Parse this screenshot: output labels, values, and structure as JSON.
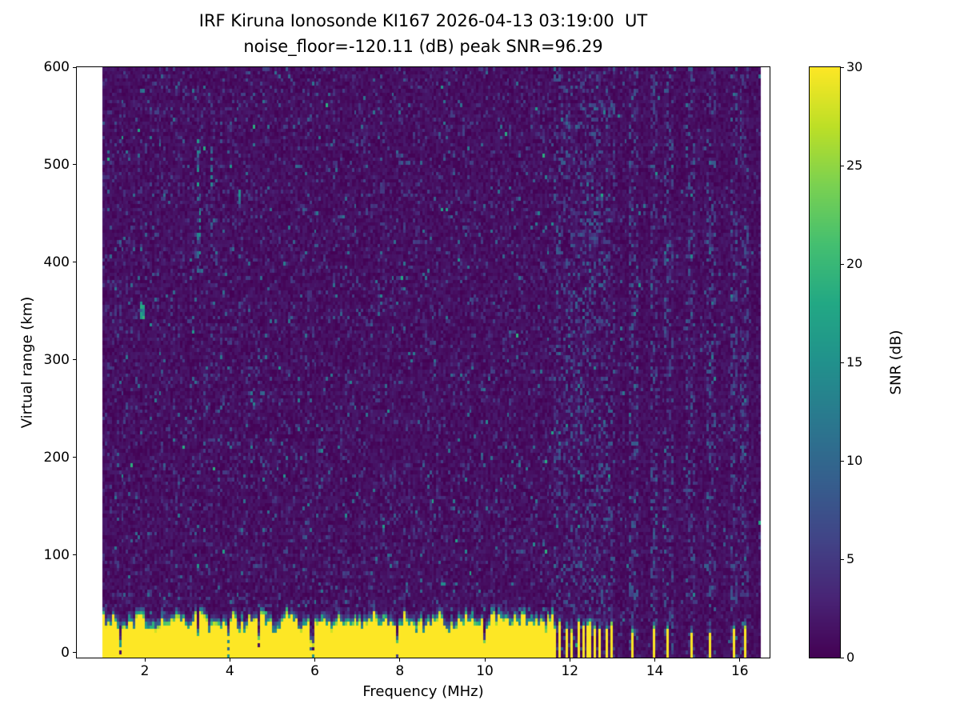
{
  "figure": {
    "background": "#ffffff"
  },
  "chart_data": {
    "type": "heatmap",
    "title": "IRF Kiruna Ionosonde KI167 2026-04-13 03:19:00  UT",
    "subtitle": "noise_floor=-120.11 (dB) peak SNR=96.29",
    "xlabel": "Frequency (MHz)",
    "ylabel": "Virtual range (km)",
    "xlim": [
      0.4,
      16.7
    ],
    "ylim": [
      -5,
      600
    ],
    "xticks": [
      2,
      4,
      6,
      8,
      10,
      12,
      14,
      16
    ],
    "yticks": [
      0,
      100,
      200,
      300,
      400,
      500,
      600
    ],
    "colorbar": {
      "label": "SNR (dB)",
      "min": 0,
      "max": 30,
      "ticks": [
        0,
        5,
        10,
        15,
        20,
        25,
        30
      ],
      "colormap": "viridis"
    },
    "colormap_stops": [
      "#440154",
      "#482475",
      "#414487",
      "#355f8d",
      "#2a788e",
      "#21918c",
      "#22a884",
      "#44bf70",
      "#7ad151",
      "#bddf26",
      "#fde725"
    ],
    "data_extent": {
      "fmin": 1.0,
      "fmax": 16.5,
      "rmin": -5,
      "rmax": 600
    },
    "grid": {
      "ncols": 280,
      "nrows": 164
    },
    "seed": 1167,
    "noise": {
      "base_max": 2.2,
      "speckle": [
        {
          "p": 0.18,
          "max": 6
        },
        {
          "p": 0.035,
          "max": 12
        },
        {
          "p": 0.005,
          "max": 19
        }
      ]
    },
    "ground_band": {
      "fmax_continuous": 11.62,
      "top_km_mean": 30,
      "top_km_var": 7,
      "transition_km": 15,
      "notch_prob": 0.05,
      "saturation_snr": 30
    },
    "stripe_band": {
      "fmin": 11.62,
      "fmax": 13.05,
      "period_mhz": 0.135,
      "duty": 0.45
    },
    "sparse_stripes": [
      13.5,
      13.98,
      14.32,
      14.86,
      15.32,
      15.86,
      16.12
    ],
    "sparse_stripe_width_mhz": 0.07,
    "echo_features": [
      {
        "f": 1.93,
        "width": 0.14,
        "r0": 342,
        "r1": 362,
        "snr": 16,
        "density": 0.85
      },
      {
        "f": 3.28,
        "width": 0.09,
        "r0": 390,
        "r1": 530,
        "snr": 13,
        "density": 0.35
      },
      {
        "f": 3.55,
        "width": 0.06,
        "r0": 430,
        "r1": 520,
        "snr": 11,
        "density": 0.2
      },
      {
        "f": 4.22,
        "width": 0.07,
        "r0": 415,
        "r1": 478,
        "snr": 12,
        "density": 0.3
      }
    ]
  }
}
